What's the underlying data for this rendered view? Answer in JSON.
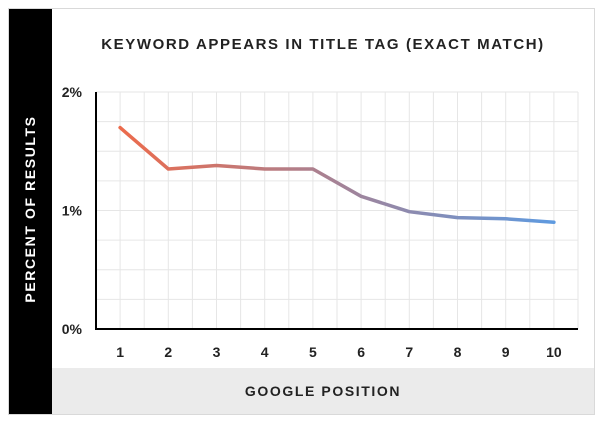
{
  "chart_data": {
    "type": "line",
    "title": "KEYWORD APPEARS IN TITLE TAG (EXACT MATCH)",
    "xlabel": "GOOGLE POSITION",
    "ylabel": "PERCENT OF RESULTS",
    "x": [
      1,
      2,
      3,
      4,
      5,
      6,
      7,
      8,
      9,
      10
    ],
    "y": [
      1.7,
      1.35,
      1.38,
      1.35,
      1.35,
      1.12,
      0.99,
      0.94,
      0.93,
      0.9
    ],
    "xlim": [
      1,
      10
    ],
    "ylim": [
      0,
      2
    ],
    "yticks": [
      0,
      1,
      2
    ],
    "ytick_labels": [
      "0%",
      "1%",
      "2%"
    ],
    "xtick_labels": [
      "1",
      "2",
      "3",
      "4",
      "5",
      "6",
      "7",
      "8",
      "9",
      "10"
    ],
    "grid": true,
    "line_gradient": [
      "#ec6b4c",
      "#5e9ae0"
    ]
  }
}
